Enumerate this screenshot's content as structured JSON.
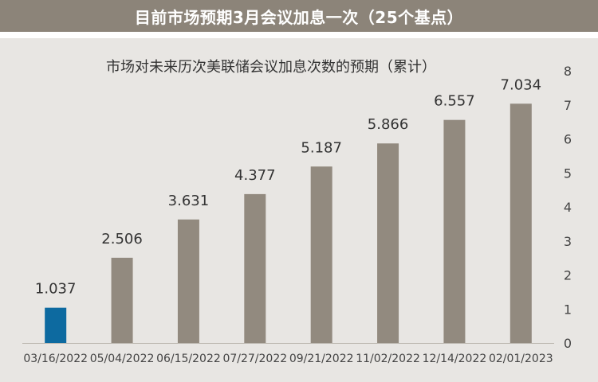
{
  "header": {
    "title": "目前市场预期3月会议加息一次（25个基点）"
  },
  "colors": {
    "header_bg": "#8c8479",
    "panel_bg": "#e8e6e3",
    "bar_gray": "#928a7f",
    "bar_highlight": "#0d6aa0"
  },
  "chart_data": {
    "type": "bar",
    "title": "市场对未来历次美联储会议加息次数的预期（累计）",
    "categories": [
      "03/16/2022",
      "05/04/2022",
      "06/15/2022",
      "07/27/2022",
      "09/21/2022",
      "11/02/2022",
      "12/14/2022",
      "02/01/2023"
    ],
    "values": [
      1.037,
      2.506,
      3.631,
      4.377,
      5.187,
      5.866,
      6.557,
      7.034
    ],
    "value_labels": [
      "1.037",
      "2.506",
      "3.631",
      "4.377",
      "5.187",
      "5.866",
      "6.557",
      "7.034"
    ],
    "highlight_index": 0,
    "ylim": [
      0,
      8
    ],
    "yticks": [
      "0",
      "1",
      "2",
      "3",
      "4",
      "5",
      "6",
      "7",
      "8"
    ],
    "yaxis_side": "right",
    "grid": false,
    "xlabel": "",
    "ylabel": ""
  }
}
